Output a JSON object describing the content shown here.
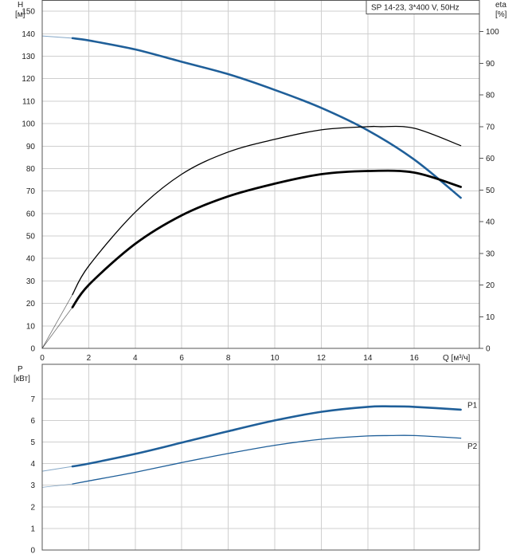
{
  "chart_data": [
    {
      "type": "line",
      "title": "SP 14-23, 3*400 V, 50Hz",
      "ylabel_left": "H",
      "ylabel_left_unit": "[м]",
      "ylabel_right": "eta",
      "ylabel_right_unit": "[%]",
      "xlabel": "Q [м³/ч]",
      "xlim": [
        0,
        18.8
      ],
      "ylim_left": [
        0,
        155
      ],
      "ylim_right": [
        0,
        110
      ],
      "x_ticks": [
        "0",
        "2",
        "4",
        "6",
        "8",
        "10",
        "12",
        "14",
        "16"
      ],
      "y_ticks_left": [
        "0",
        "10",
        "20",
        "30",
        "40",
        "50",
        "60",
        "70",
        "80",
        "90",
        "100",
        "110",
        "120",
        "130",
        "140",
        "150"
      ],
      "y_ticks_right": [
        "0",
        "10",
        "20",
        "30",
        "40",
        "50",
        "60",
        "70",
        "80",
        "90",
        "100"
      ],
      "grid": true,
      "series": [
        {
          "name": "",
          "axis": "left",
          "color": "#1f5f99",
          "x": [
            0,
            1.3,
            2,
            4,
            6,
            8,
            10,
            12,
            14,
            16,
            18
          ],
          "y": [
            139,
            138,
            137,
            133,
            127.5,
            122,
            115,
            107,
            97,
            84,
            67
          ]
        },
        {
          "name": "",
          "axis": "right",
          "color": "#000000",
          "x": [
            0,
            1.3,
            2,
            4,
            6,
            8,
            10,
            12,
            14,
            14.5,
            16,
            18
          ],
          "y": [
            0,
            17,
            26,
            43,
            55,
            62,
            66,
            69,
            70,
            70,
            69.5,
            64
          ]
        },
        {
          "name": "",
          "axis": "right",
          "color": "#000000",
          "x": [
            0,
            1.3,
            2,
            4,
            6,
            8,
            10,
            12,
            14,
            16,
            18
          ],
          "y": [
            0,
            13,
            20,
            33,
            42,
            48,
            52,
            55,
            56,
            55.5,
            51
          ]
        }
      ]
    },
    {
      "type": "line",
      "ylabel": "P",
      "ylabel_unit": "[кВт]",
      "xlim": [
        0,
        18.8
      ],
      "ylim": [
        0,
        8.6
      ],
      "y_ticks": [
        "0",
        "1",
        "2",
        "3",
        "4",
        "5",
        "6",
        "7"
      ],
      "grid": true,
      "series": [
        {
          "name": "P1",
          "color": "#1f5f99",
          "x": [
            0,
            1.3,
            2,
            4,
            6,
            8,
            10,
            12,
            14,
            15,
            16,
            18
          ],
          "y": [
            3.65,
            3.87,
            4.0,
            4.45,
            4.97,
            5.5,
            6.0,
            6.4,
            6.63,
            6.65,
            6.63,
            6.5
          ]
        },
        {
          "name": "P2",
          "color": "#1f5f99",
          "x": [
            0,
            1.3,
            2,
            4,
            6,
            8,
            10,
            12,
            14,
            15,
            16,
            18
          ],
          "y": [
            2.9,
            3.06,
            3.2,
            3.6,
            4.05,
            4.47,
            4.85,
            5.13,
            5.28,
            5.3,
            5.3,
            5.18
          ]
        }
      ]
    }
  ]
}
